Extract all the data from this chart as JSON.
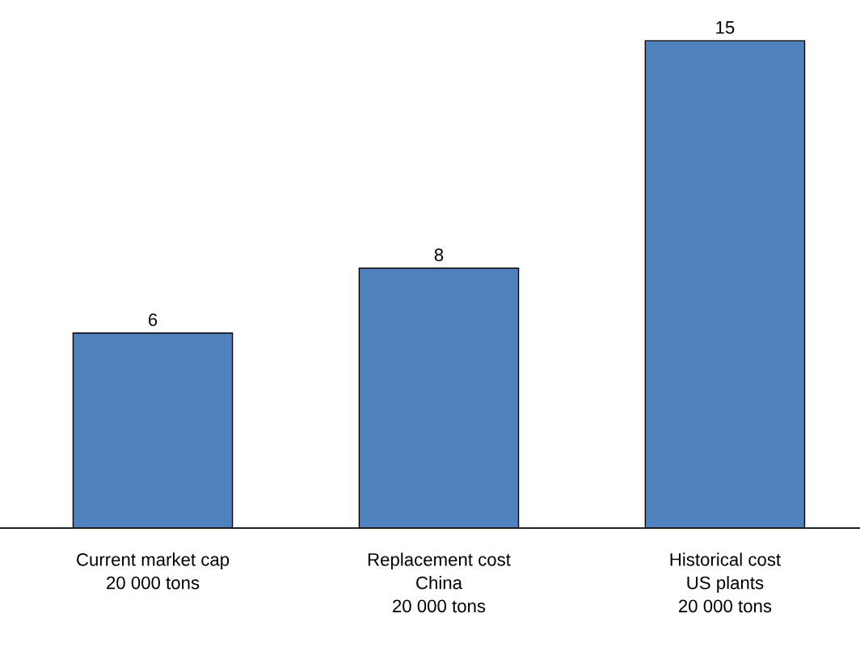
{
  "chart_data": {
    "type": "bar",
    "categories": [
      "Current market cap\n20 000 tons",
      "Replacement cost\nChina\n20 000 tons",
      "Historical cost\nUS plants\n20 000 tons"
    ],
    "values": [
      6,
      8,
      15
    ],
    "color": "#4f81bd",
    "data_labels": true,
    "grid": false,
    "legend": false
  }
}
